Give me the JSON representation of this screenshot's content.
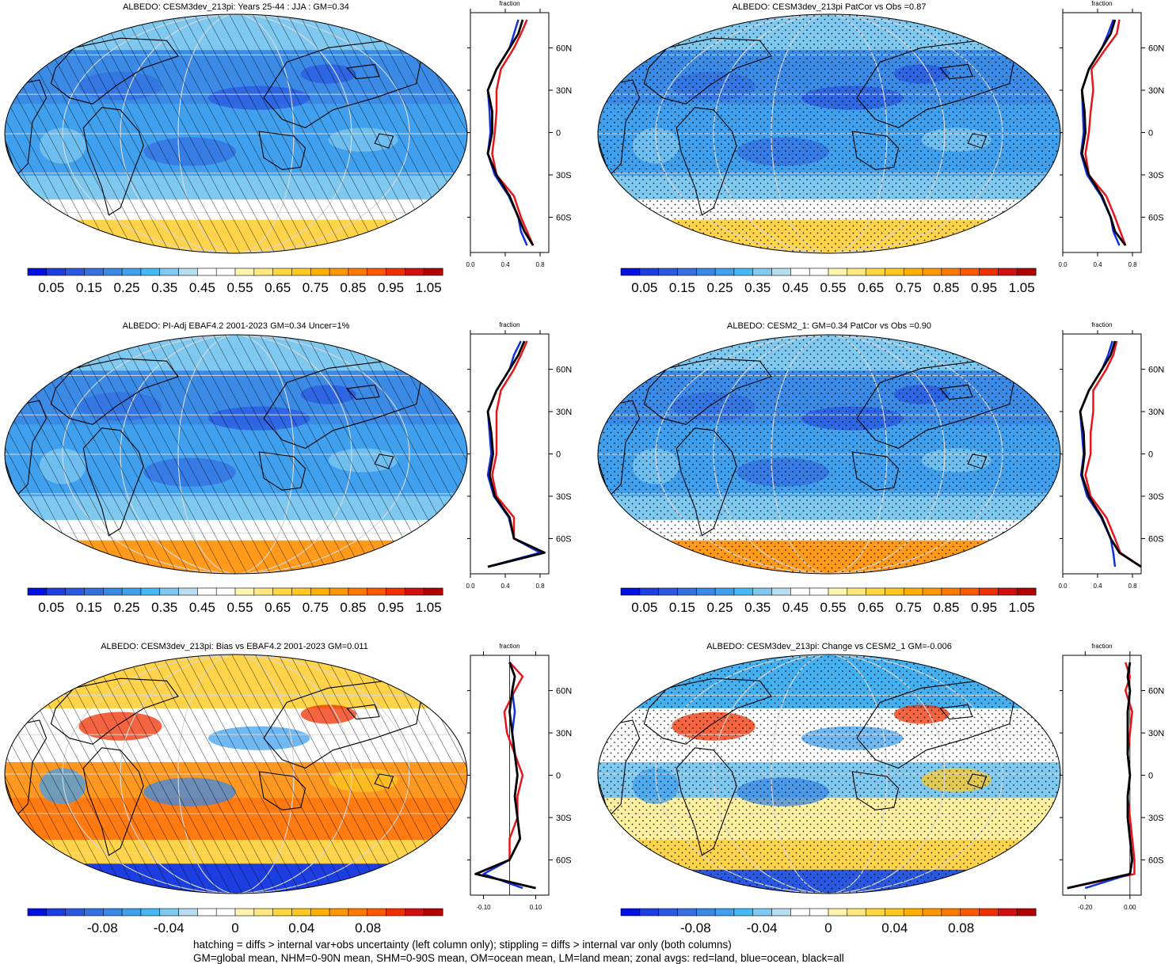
{
  "panels": [
    {
      "title": "ALBEDO: CESM3dev_213pi: Years 25-44 : JJA : GM=0.34",
      "kind": "abs",
      "overlay": "hatch"
    },
    {
      "title": "ALBEDO: CESM3dev_213pi PatCor vs Obs =0.87",
      "kind": "abs",
      "overlay": "stipple"
    },
    {
      "title": "ALBEDO: PI-Adj EBAF4.2 2001-2023 GM=0.34 Uncer=1%",
      "kind": "abs",
      "overlay": "hatch"
    },
    {
      "title": "ALBEDO: CESM2_1: GM=0.34 PatCor vs Obs =0.90",
      "kind": "abs",
      "overlay": "stipple"
    },
    {
      "title": "ALBEDO: CESM3dev_213pi: Bias vs EBAF4.2 2001-2023 GM=0.011",
      "kind": "diff",
      "overlay": "hatch"
    },
    {
      "title": "ALBEDO: CESM3dev_213pi: Change vs CESM2_1 GM=-0.006",
      "kind": "diff",
      "overlay": "stipple"
    }
  ],
  "colorbars": {
    "abs": {
      "labels": [
        "0.05",
        "0.15",
        "0.25",
        "0.35",
        "0.45",
        "0.55",
        "0.65",
        "0.75",
        "0.85",
        "0.95",
        "1.05"
      ],
      "colors": [
        "#0010e0",
        "#1c3ee0",
        "#2a58e0",
        "#3470e0",
        "#3a88e6",
        "#40a0ee",
        "#45b8f5",
        "#7fc8f0",
        "#b8dcf0",
        "#ffffff",
        "#ffffff",
        "#fff5b0",
        "#ffe880",
        "#ffd840",
        "#ffc820",
        "#ffb000",
        "#ff9800",
        "#ff7800",
        "#ff5800",
        "#f03000",
        "#d01010",
        "#b00000"
      ]
    },
    "diff": {
      "labels": [
        "-0.08",
        "-0.04",
        "0",
        "0.04",
        "0.08"
      ],
      "colors": [
        "#0010e0",
        "#1c3ee0",
        "#2a58e0",
        "#3470e0",
        "#3a88e6",
        "#40a0ee",
        "#45b8f5",
        "#7fc8f0",
        "#b8dcf0",
        "#ffffff",
        "#ffffff",
        "#fff5b0",
        "#ffe880",
        "#ffd840",
        "#ffc820",
        "#ffb000",
        "#ff9800",
        "#ff7800",
        "#ff5800",
        "#f03000",
        "#d01010",
        "#b00000"
      ]
    }
  },
  "zonal": {
    "header": "fraction",
    "lat_labels": [
      "60N",
      "30N",
      "0",
      "30S",
      "60S"
    ],
    "abs_ticks": [
      "0.0",
      "0.4",
      "0.8"
    ],
    "bias_ticks": [
      "-0.10",
      "0.10"
    ],
    "change_ticks": [
      "-0.20",
      "0.00"
    ]
  },
  "footer": {
    "line1": "hatching = diffs > internal var+obs uncertainty (left column only); stippling = diffs > internal var only (both columns)",
    "line2": "GM=global mean, NHM=0-90N mean, SHM=0-90S mean, OM=ocean mean, LM=land mean; zonal avgs: red=land, blue=ocean, black=all"
  },
  "chart_data": [
    {
      "type": "heatmap",
      "title": "ALBEDO: CESM3dev_213pi: Years 25-44 : JJA : GM=0.34",
      "colorbar_ticks": [
        0.05,
        0.15,
        0.25,
        0.35,
        0.45,
        0.55,
        0.65,
        0.75,
        0.85,
        0.95,
        1.05
      ],
      "zonal_mean": {
        "xlabel": "fraction",
        "xlim": [
          0.0,
          0.9
        ],
        "xticks": [
          0.0,
          0.4,
          0.8
        ],
        "lat": [
          80,
          70,
          60,
          45,
          30,
          15,
          0,
          -15,
          -30,
          -45,
          -60,
          -70,
          -80
        ],
        "all": [
          0.6,
          0.55,
          0.45,
          0.3,
          0.2,
          0.25,
          0.25,
          0.2,
          0.3,
          0.45,
          0.55,
          0.62,
          0.72
        ],
        "land": [
          0.65,
          0.58,
          0.5,
          0.35,
          0.3,
          0.3,
          0.28,
          0.25,
          0.3,
          0.5,
          0.58,
          0.65,
          0.72
        ],
        "ocean": [
          0.55,
          0.5,
          0.45,
          0.3,
          0.2,
          0.22,
          0.23,
          0.2,
          0.28,
          0.44,
          0.55,
          0.58,
          0.65
        ]
      }
    },
    {
      "type": "heatmap",
      "title": "ALBEDO: CESM3dev_213pi PatCor vs Obs =0.87",
      "colorbar_ticks": [
        0.05,
        0.15,
        0.25,
        0.35,
        0.45,
        0.55,
        0.65,
        0.75,
        0.85,
        0.95,
        1.05
      ],
      "zonal_mean": {
        "xlabel": "fraction",
        "xlim": [
          0.0,
          0.9
        ],
        "xticks": [
          0.0,
          0.4,
          0.8
        ],
        "lat": [
          80,
          70,
          60,
          45,
          30,
          15,
          0,
          -15,
          -30,
          -45,
          -60,
          -70,
          -80
        ],
        "all": [
          0.6,
          0.55,
          0.45,
          0.3,
          0.22,
          0.25,
          0.26,
          0.22,
          0.3,
          0.45,
          0.55,
          0.6,
          0.72
        ],
        "land": [
          0.65,
          0.62,
          0.5,
          0.33,
          0.35,
          0.32,
          0.3,
          0.26,
          0.3,
          0.5,
          0.6,
          0.66,
          0.72
        ],
        "ocean": [
          0.58,
          0.52,
          0.45,
          0.3,
          0.22,
          0.23,
          0.24,
          0.21,
          0.28,
          0.44,
          0.55,
          0.58,
          0.65
        ]
      }
    },
    {
      "type": "heatmap",
      "title": "ALBEDO: PI-Adj EBAF4.2 2001-2023 GM=0.34 Uncer=1%",
      "colorbar_ticks": [
        0.05,
        0.15,
        0.25,
        0.35,
        0.45,
        0.55,
        0.65,
        0.75,
        0.85,
        0.95,
        1.05
      ],
      "zonal_mean": {
        "xlabel": "fraction",
        "xlim": [
          0.0,
          0.9
        ],
        "xticks": [
          0.0,
          0.4,
          0.8
        ],
        "lat": [
          80,
          70,
          60,
          45,
          30,
          15,
          0,
          -15,
          -30,
          -45,
          -60,
          -70,
          -80
        ],
        "all": [
          0.62,
          0.55,
          0.45,
          0.3,
          0.2,
          0.24,
          0.26,
          0.22,
          0.28,
          0.45,
          0.5,
          0.85,
          0.2
        ],
        "land": [
          0.65,
          0.58,
          0.5,
          0.35,
          0.3,
          0.3,
          0.3,
          0.25,
          0.3,
          0.5,
          0.5,
          0.85,
          0.2
        ],
        "ocean": [
          0.58,
          0.5,
          0.45,
          0.3,
          0.2,
          0.22,
          0.24,
          0.2,
          0.27,
          0.44,
          0.5,
          0.8,
          0.2
        ]
      }
    },
    {
      "type": "heatmap",
      "title": "ALBEDO: CESM2_1: GM=0.34 PatCor vs Obs =0.90",
      "colorbar_ticks": [
        0.05,
        0.15,
        0.25,
        0.35,
        0.45,
        0.55,
        0.65,
        0.75,
        0.85,
        0.95,
        1.05
      ],
      "zonal_mean": {
        "xlabel": "fraction",
        "xlim": [
          0.0,
          0.9
        ],
        "xticks": [
          0.0,
          0.4,
          0.8
        ],
        "lat": [
          80,
          70,
          60,
          45,
          30,
          15,
          0,
          -15,
          -30,
          -45,
          -60,
          -70,
          -80
        ],
        "all": [
          0.6,
          0.55,
          0.45,
          0.3,
          0.2,
          0.24,
          0.25,
          0.22,
          0.3,
          0.45,
          0.55,
          0.65,
          0.9
        ],
        "land": [
          0.62,
          0.58,
          0.5,
          0.35,
          0.35,
          0.32,
          0.32,
          0.26,
          0.32,
          0.5,
          0.6,
          0.66,
          0.9
        ],
        "ocean": [
          0.57,
          0.52,
          0.45,
          0.3,
          0.2,
          0.22,
          0.24,
          0.21,
          0.28,
          0.44,
          0.55,
          0.58,
          0.6
        ]
      }
    },
    {
      "type": "heatmap",
      "title": "ALBEDO: CESM3dev_213pi: Bias vs EBAF4.2 2001-2023 GM=0.011",
      "colorbar_ticks": [
        -0.08,
        -0.04,
        0,
        0.04,
        0.08
      ],
      "zonal_mean": {
        "xlabel": "fraction",
        "xlim": [
          -0.15,
          0.15
        ],
        "xticks": [
          -0.1,
          0.1
        ],
        "lat": [
          80,
          70,
          60,
          45,
          30,
          15,
          0,
          -15,
          -30,
          -45,
          -60,
          -70,
          -80
        ],
        "all": [
          0.0,
          0.02,
          0.01,
          0.0,
          0.01,
          0.02,
          0.03,
          0.02,
          0.03,
          0.04,
          0.0,
          -0.13,
          0.1
        ],
        "land": [
          0.0,
          0.05,
          0.02,
          -0.02,
          -0.01,
          0.02,
          0.05,
          0.03,
          0.03,
          0.0,
          0.0,
          -0.13,
          0.1
        ],
        "ocean": [
          0.0,
          0.02,
          0.01,
          0.02,
          0.01,
          0.02,
          0.03,
          0.02,
          0.03,
          0.04,
          0.0,
          -0.1,
          0.05
        ]
      }
    },
    {
      "type": "heatmap",
      "title": "ALBEDO: CESM3dev_213pi: Change vs CESM2_1 GM=-0.006",
      "colorbar_ticks": [
        -0.08,
        -0.04,
        0,
        0.04,
        0.08
      ],
      "zonal_mean": {
        "xlabel": "fraction",
        "xlim": [
          -0.3,
          0.05
        ],
        "xticks": [
          -0.2,
          0.0
        ],
        "lat": [
          80,
          70,
          60,
          45,
          30,
          15,
          0,
          -15,
          -30,
          -45,
          -60,
          -70,
          -80
        ],
        "all": [
          0.0,
          -0.01,
          0.0,
          -0.01,
          -0.01,
          -0.01,
          0.0,
          -0.01,
          -0.01,
          0.0,
          0.01,
          0.0,
          -0.28
        ],
        "land": [
          -0.02,
          0.0,
          -0.02,
          0.01,
          0.0,
          -0.01,
          0.0,
          -0.01,
          0.0,
          0.01,
          0.02,
          0.02,
          -0.28
        ],
        "ocean": [
          0.0,
          -0.01,
          0.0,
          -0.01,
          -0.01,
          -0.01,
          0.0,
          -0.01,
          -0.01,
          0.0,
          0.01,
          0.0,
          -0.2
        ]
      }
    }
  ]
}
